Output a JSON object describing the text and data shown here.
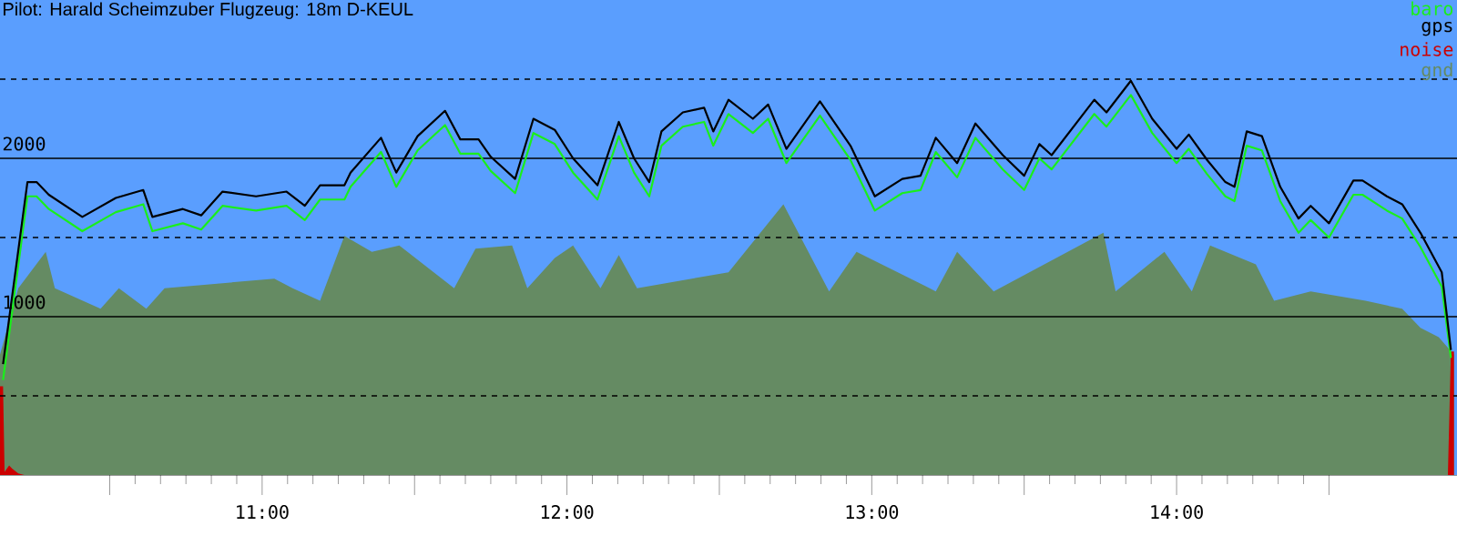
{
  "chart_data": {
    "type": "line",
    "title": "Pilot: Harald Scheimzuber Flugzeug: 18m D-KEUL",
    "xlim": [
      10.14,
      14.92
    ],
    "ylim": [
      0,
      3000
    ],
    "xticks": [
      {
        "value": 10.5,
        "label": null
      },
      {
        "value": 11,
        "label": "11:00"
      },
      {
        "value": 11.5,
        "label": null
      },
      {
        "value": 12,
        "label": "12:00"
      },
      {
        "value": 12.5,
        "label": null
      },
      {
        "value": 13,
        "label": "13:00"
      },
      {
        "value": 13.5,
        "label": null
      },
      {
        "value": 14,
        "label": "14:00"
      },
      {
        "value": 14.5,
        "label": null
      }
    ],
    "yticks": [
      {
        "value": 500,
        "label": null
      },
      1000,
      {
        "value": 1500,
        "label": null
      },
      2000,
      {
        "value": 2500,
        "label": null
      }
    ],
    "grid": "y",
    "legend": "top right",
    "marker": "none",
    "series": [
      {
        "name": "baro",
        "color": "#1aef1a",
        "x": [
          10.15,
          10.23,
          10.26,
          10.3,
          10.41,
          10.52,
          10.61,
          10.64,
          10.74,
          10.8,
          10.87,
          10.98,
          11.08,
          11.14,
          11.19,
          11.27,
          11.29,
          11.39,
          11.44,
          11.51,
          11.6,
          11.65,
          11.71,
          11.75,
          11.83,
          11.89,
          11.96,
          12.02,
          12.1,
          12.17,
          12.22,
          12.27,
          12.31,
          12.38,
          12.45,
          12.48,
          12.53,
          12.61,
          12.66,
          12.72,
          12.83,
          12.93,
          13.01,
          13.1,
          13.16,
          13.21,
          13.28,
          13.34,
          13.43,
          13.5,
          13.55,
          13.59,
          13.73,
          13.77,
          13.85,
          13.92,
          14.0,
          14.04,
          14.1,
          14.16,
          14.19,
          14.23,
          14.28,
          14.34,
          14.4,
          14.44,
          14.5,
          14.58,
          14.61,
          14.69,
          14.74,
          14.8,
          14.87,
          14.9
        ],
        "values": [
          600,
          1760,
          1760,
          1680,
          1540,
          1660,
          1710,
          1540,
          1590,
          1550,
          1700,
          1670,
          1700,
          1610,
          1740,
          1740,
          1820,
          2040,
          1820,
          2050,
          2210,
          2030,
          2030,
          1920,
          1780,
          2160,
          2090,
          1910,
          1740,
          2140,
          1910,
          1760,
          2080,
          2200,
          2230,
          2080,
          2280,
          2160,
          2250,
          1970,
          2270,
          1990,
          1670,
          1780,
          1800,
          2040,
          1880,
          2130,
          1930,
          1800,
          2000,
          1930,
          2280,
          2200,
          2400,
          2160,
          1970,
          2060,
          1900,
          1760,
          1730,
          2080,
          2050,
          1730,
          1530,
          1610,
          1500,
          1770,
          1770,
          1670,
          1620,
          1440,
          1190,
          740
        ]
      },
      {
        "name": "gps",
        "color": "#000000",
        "x": [
          10.15,
          10.23,
          10.26,
          10.3,
          10.41,
          10.52,
          10.61,
          10.64,
          10.74,
          10.8,
          10.87,
          10.98,
          11.08,
          11.14,
          11.19,
          11.27,
          11.29,
          11.39,
          11.44,
          11.51,
          11.6,
          11.65,
          11.71,
          11.75,
          11.83,
          11.89,
          11.96,
          12.02,
          12.1,
          12.17,
          12.22,
          12.27,
          12.31,
          12.38,
          12.45,
          12.48,
          12.53,
          12.61,
          12.66,
          12.72,
          12.83,
          12.93,
          13.01,
          13.1,
          13.16,
          13.21,
          13.28,
          13.34,
          13.43,
          13.5,
          13.55,
          13.59,
          13.73,
          13.77,
          13.85,
          13.92,
          14.0,
          14.04,
          14.1,
          14.16,
          14.19,
          14.23,
          14.28,
          14.34,
          14.4,
          14.44,
          14.5,
          14.58,
          14.61,
          14.69,
          14.74,
          14.8,
          14.87,
          14.9
        ],
        "values": [
          700,
          1850,
          1850,
          1770,
          1630,
          1750,
          1800,
          1630,
          1680,
          1640,
          1790,
          1760,
          1790,
          1700,
          1830,
          1830,
          1910,
          2130,
          1910,
          2140,
          2300,
          2120,
          2120,
          2010,
          1870,
          2250,
          2180,
          2000,
          1830,
          2230,
          2000,
          1850,
          2170,
          2290,
          2320,
          2170,
          2370,
          2250,
          2340,
          2060,
          2360,
          2080,
          1760,
          1870,
          1890,
          2130,
          1970,
          2220,
          2020,
          1890,
          2090,
          2020,
          2370,
          2290,
          2490,
          2250,
          2060,
          2150,
          1990,
          1850,
          1820,
          2170,
          2140,
          1820,
          1620,
          1700,
          1590,
          1860,
          1860,
          1760,
          1710,
          1530,
          1280,
          790
        ]
      },
      {
        "name": "noise",
        "color": "#cc0000",
        "type": "area",
        "x": [
          10.14,
          10.15,
          10.155,
          10.17,
          10.18,
          10.2,
          10.22,
          14.89,
          14.9,
          14.91
        ],
        "values": [
          560,
          560,
          20,
          60,
          40,
          10,
          0,
          0,
          780,
          780
        ]
      },
      {
        "name": "gnd",
        "color": "#658b63",
        "type": "area",
        "x": [
          10.14,
          10.2,
          10.29,
          10.32,
          10.47,
          10.53,
          10.62,
          10.68,
          11.04,
          11.1,
          11.19,
          11.27,
          11.36,
          11.45,
          11.63,
          11.7,
          11.82,
          11.87,
          11.96,
          12.02,
          12.11,
          12.17,
          12.23,
          12.53,
          12.71,
          12.86,
          12.95,
          13.21,
          13.28,
          13.4,
          13.76,
          13.8,
          13.96,
          14.05,
          14.11,
          14.26,
          14.32,
          14.44,
          14.62,
          14.74,
          14.8,
          14.86,
          14.91
        ],
        "values": [
          760,
          1180,
          1410,
          1180,
          1050,
          1180,
          1050,
          1180,
          1240,
          1180,
          1100,
          1510,
          1410,
          1450,
          1180,
          1430,
          1450,
          1180,
          1370,
          1450,
          1180,
          1390,
          1180,
          1280,
          1710,
          1160,
          1410,
          1160,
          1410,
          1160,
          1530,
          1160,
          1410,
          1160,
          1450,
          1330,
          1100,
          1160,
          1100,
          1050,
          930,
          870,
          760
        ]
      }
    ]
  }
}
